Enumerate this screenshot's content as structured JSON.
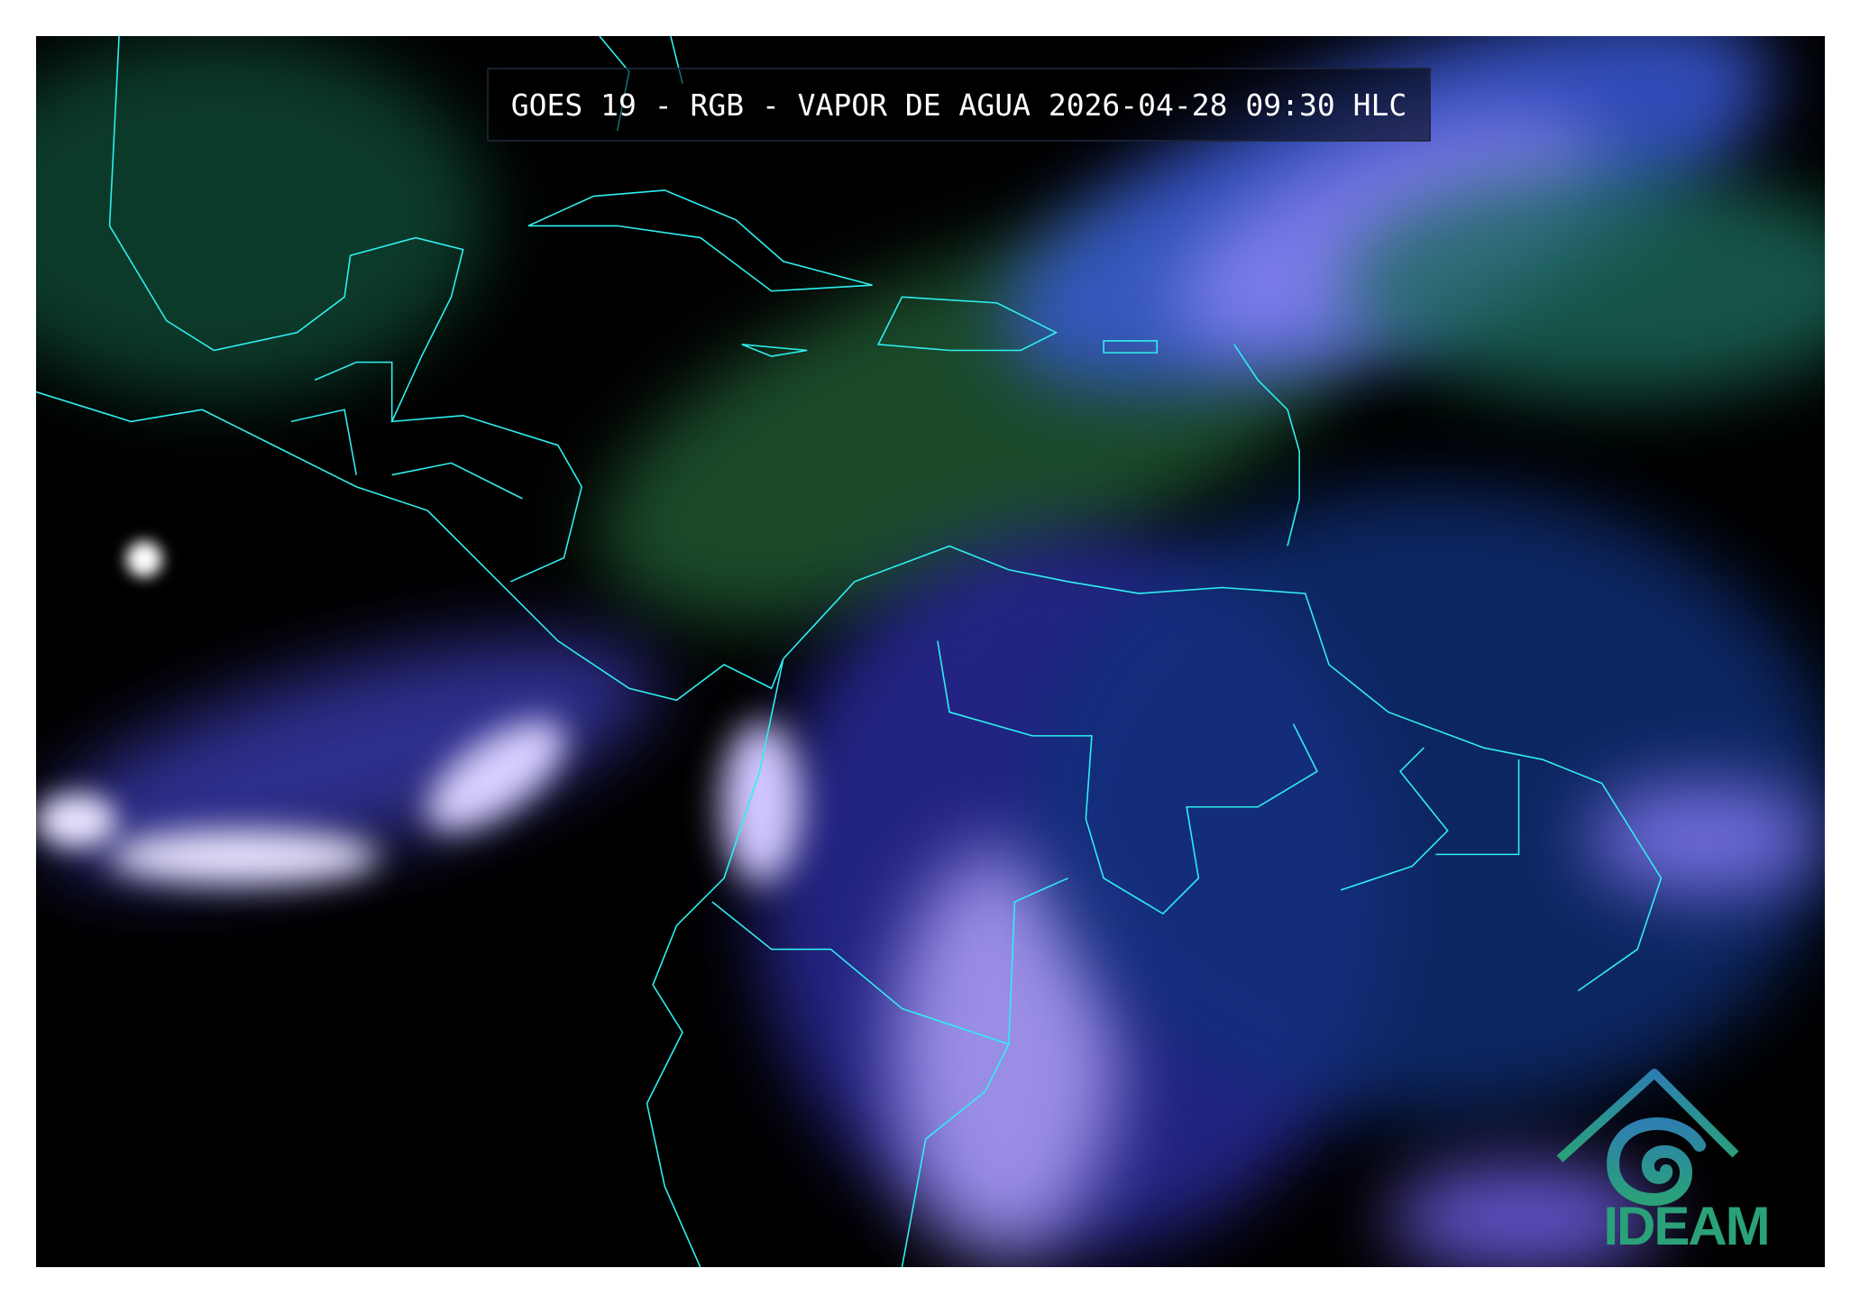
{
  "title": "GOES 19 - RGB - VAPOR DE AGUA 2026-04-28 09:30 HLC",
  "logo": {
    "text": "IDEAM",
    "color": "#2aa179"
  },
  "colors": {
    "coastline": "#2ef0f0",
    "background": "#000000",
    "cloud": "#8a6cff",
    "moisture": "#1e5a2a"
  }
}
